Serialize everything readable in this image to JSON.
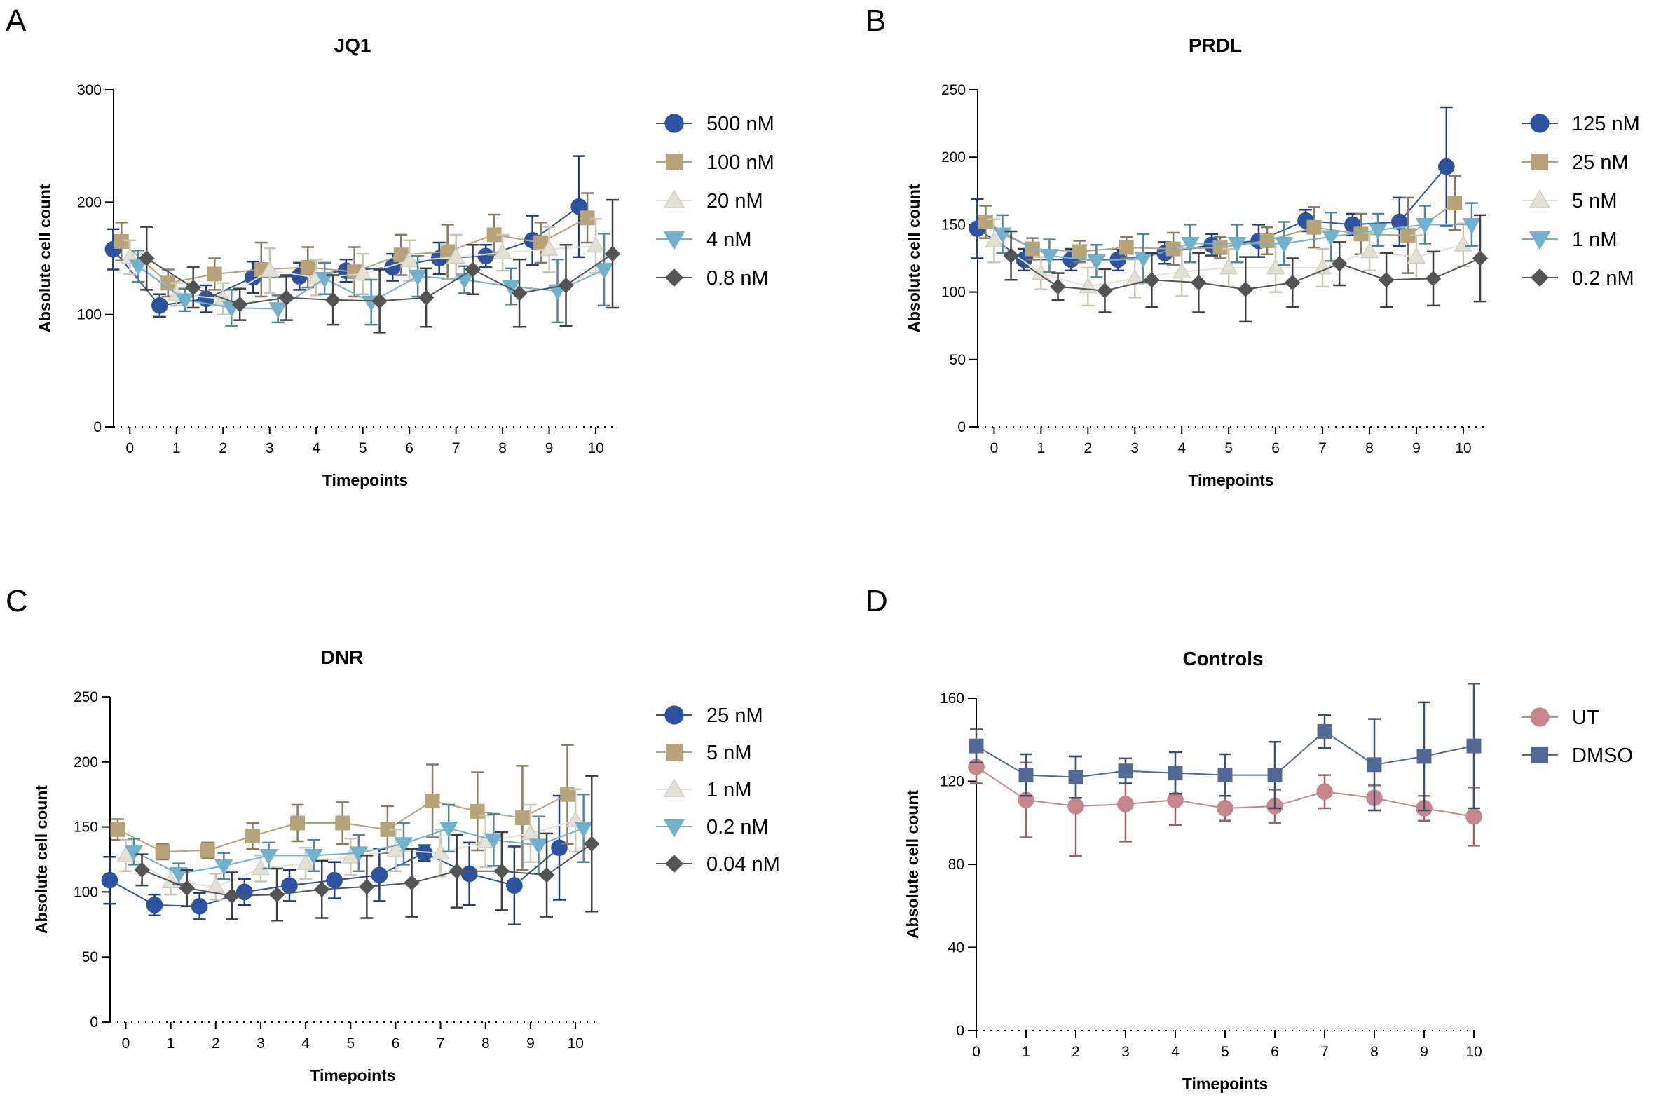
{
  "figure": {
    "panels": [
      {
        "letter": "A",
        "title": "JQ1"
      },
      {
        "letter": "B",
        "title": "PRDL"
      },
      {
        "letter": "C",
        "title": "DNR"
      },
      {
        "letter": "D",
        "title": "Controls"
      }
    ]
  },
  "chart_data": [
    {
      "type": "line",
      "title": "JQ1",
      "xlabel": "Timepoints",
      "ylabel": "Absolute cell count",
      "x": [
        0,
        1,
        2,
        3,
        4,
        5,
        6,
        7,
        8,
        9,
        10
      ],
      "xlim": [
        -0.35,
        10.45
      ],
      "ylim": [
        0,
        300
      ],
      "yticks": [
        0,
        100,
        200,
        300
      ],
      "legend_position": "right",
      "dodge": 0.36,
      "series": [
        {
          "name": "500 nM",
          "marker": "circle",
          "color": "#2c52a0",
          "values": [
            158,
            108,
            114,
            133,
            134,
            139,
            142,
            150,
            152,
            166,
            196
          ],
          "errors": [
            18,
            10,
            12,
            14,
            12,
            10,
            12,
            14,
            10,
            22,
            45
          ]
        },
        {
          "name": "100 nM",
          "marker": "square",
          "color": "#b7a37a",
          "values": [
            165,
            128,
            136,
            140,
            142,
            138,
            153,
            156,
            171,
            164,
            186
          ],
          "errors": [
            17,
            12,
            14,
            24,
            18,
            22,
            18,
            24,
            18,
            18,
            22
          ]
        },
        {
          "name": "20 nM",
          "marker": "triangle-up",
          "color": "#e3e1d6",
          "values": [
            151,
            118,
            114,
            139,
            133,
            136,
            148,
            151,
            155,
            158,
            161
          ],
          "errors": [
            15,
            10,
            14,
            20,
            16,
            18,
            18,
            20,
            16,
            20,
            24
          ]
        },
        {
          "name": "4 nM",
          "marker": "triangle-down",
          "color": "#71b1cc",
          "values": [
            143,
            113,
            106,
            105,
            132,
            111,
            134,
            131,
            125,
            121,
            140
          ],
          "errors": [
            14,
            10,
            16,
            12,
            14,
            20,
            18,
            12,
            16,
            28,
            32
          ]
        },
        {
          "name": "0.8 nM",
          "marker": "diamond",
          "color": "#545454",
          "values": [
            150,
            124,
            109,
            115,
            113,
            112,
            115,
            140,
            119,
            126,
            154
          ],
          "errors": [
            28,
            18,
            14,
            20,
            22,
            28,
            26,
            22,
            30,
            36,
            48
          ]
        }
      ]
    },
    {
      "type": "line",
      "title": "PRDL",
      "xlabel": "Timepoints",
      "ylabel": "Absolute cell count",
      "x": [
        0,
        1,
        2,
        3,
        4,
        5,
        6,
        7,
        8,
        9,
        10
      ],
      "xlim": [
        -0.35,
        10.45
      ],
      "ylim": [
        0,
        250
      ],
      "yticks": [
        0,
        50,
        100,
        150,
        200,
        250
      ],
      "legend_position": "right",
      "dodge": 0.36,
      "series": [
        {
          "name": "125 nM",
          "marker": "circle",
          "color": "#2c52a0",
          "values": [
            147,
            124,
            124,
            124,
            129,
            135,
            138,
            153,
            150,
            152,
            193
          ],
          "errors": [
            22,
            8,
            8,
            8,
            8,
            8,
            12,
            8,
            8,
            18,
            44
          ]
        },
        {
          "name": "25 nM",
          "marker": "square",
          "color": "#b7a37a",
          "values": [
            152,
            132,
            130,
            133,
            132,
            133,
            138,
            148,
            143,
            142,
            166
          ],
          "errors": [
            12,
            8,
            8,
            8,
            12,
            8,
            10,
            15,
            15,
            28,
            20
          ]
        },
        {
          "name": "5 nM",
          "marker": "triangle-up",
          "color": "#e3e1d6",
          "values": [
            138,
            114,
            104,
            110,
            115,
            118,
            118,
            118,
            130,
            126,
            135
          ],
          "errors": [
            16,
            12,
            14,
            14,
            18,
            14,
            18,
            14,
            14,
            16,
            16
          ]
        },
        {
          "name": "1 nM",
          "marker": "triangle-down",
          "color": "#71b1cc",
          "values": [
            143,
            127,
            123,
            125,
            136,
            136,
            136,
            141,
            146,
            150,
            150
          ],
          "errors": [
            14,
            12,
            12,
            18,
            14,
            14,
            16,
            18,
            12,
            14,
            16
          ]
        },
        {
          "name": "0.2 nM",
          "marker": "diamond",
          "color": "#545454",
          "values": [
            127,
            104,
            101,
            109,
            107,
            102,
            107,
            121,
            109,
            110,
            125
          ],
          "errors": [
            18,
            10,
            16,
            20,
            22,
            24,
            18,
            16,
            20,
            20,
            32
          ]
        }
      ]
    },
    {
      "type": "line",
      "title": "DNR",
      "xlabel": "Timepoints",
      "ylabel": "Absolute cell count",
      "x": [
        0,
        1,
        2,
        3,
        4,
        5,
        6,
        7,
        8,
        9,
        10
      ],
      "xlim": [
        -0.35,
        10.45
      ],
      "ylim": [
        0,
        250
      ],
      "yticks": [
        0,
        50,
        100,
        150,
        200,
        250
      ],
      "legend_position": "right",
      "dodge": 0.36,
      "series": [
        {
          "name": "25 nM",
          "marker": "circle",
          "color": "#2c52a0",
          "values": [
            109,
            90,
            89,
            100,
            105,
            109,
            113,
            130,
            114,
            105,
            134
          ],
          "errors": [
            18,
            8,
            10,
            10,
            12,
            14,
            20,
            6,
            24,
            30,
            40
          ]
        },
        {
          "name": "5 nM",
          "marker": "square",
          "color": "#b7a37a",
          "values": [
            148,
            131,
            132,
            143,
            153,
            153,
            148,
            170,
            162,
            157,
            175
          ],
          "errors": [
            8,
            6,
            6,
            10,
            14,
            16,
            18,
            28,
            30,
            40,
            38
          ]
        },
        {
          "name": "1 nM",
          "marker": "triangle-up",
          "color": "#e3e1d6",
          "values": [
            128,
            108,
            104,
            118,
            122,
            127,
            132,
            130,
            139,
            145,
            155
          ],
          "errors": [
            12,
            10,
            10,
            10,
            12,
            14,
            16,
            18,
            20,
            22,
            24
          ]
        },
        {
          "name": "0.2 nM",
          "marker": "triangle-down",
          "color": "#71b1cc",
          "values": [
            131,
            114,
            120,
            128,
            128,
            130,
            137,
            149,
            140,
            136,
            149
          ],
          "errors": [
            10,
            8,
            10,
            10,
            12,
            14,
            16,
            18,
            20,
            22,
            26
          ]
        },
        {
          "name": "0.04 nM",
          "marker": "diamond",
          "color": "#545454",
          "values": [
            117,
            103,
            97,
            98,
            102,
            104,
            107,
            116,
            116,
            113,
            137
          ],
          "errors": [
            12,
            14,
            18,
            20,
            22,
            24,
            26,
            28,
            30,
            32,
            52
          ]
        }
      ]
    },
    {
      "type": "line",
      "title": "Controls",
      "xlabel": "Timepoints",
      "ylabel": "Absolute cell count",
      "x": [
        0,
        1,
        2,
        3,
        4,
        5,
        6,
        7,
        8,
        9,
        10
      ],
      "xlim": [
        0,
        10
      ],
      "ylim": [
        0,
        160
      ],
      "yticks": [
        0,
        40,
        80,
        120,
        160
      ],
      "legend_position": "right",
      "dodge": 0,
      "series": [
        {
          "name": "UT",
          "marker": "circle",
          "color": "#c6868d",
          "values": [
            127,
            111,
            108,
            109,
            111,
            107,
            108,
            115,
            112,
            107,
            103
          ],
          "errors": [
            8,
            18,
            24,
            18,
            12,
            6,
            8,
            8,
            6,
            6,
            14
          ]
        },
        {
          "name": "DMSO",
          "marker": "square",
          "color": "#536995",
          "values": [
            137,
            123,
            122,
            125,
            124,
            123,
            123,
            144,
            128,
            132,
            137
          ],
          "errors": [
            8,
            10,
            10,
            6,
            10,
            10,
            16,
            8,
            22,
            26,
            30
          ]
        }
      ]
    }
  ]
}
